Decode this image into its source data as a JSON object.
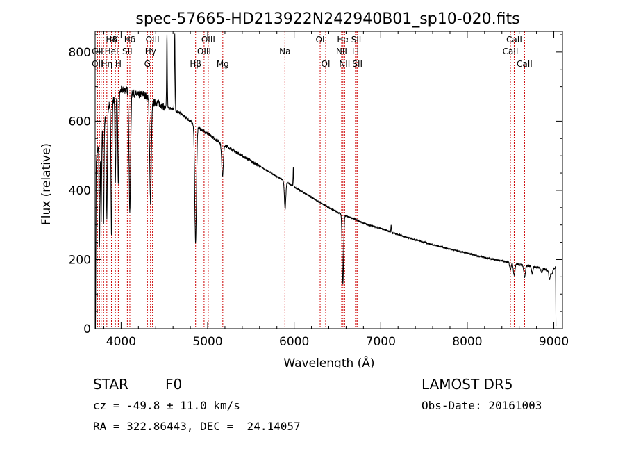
{
  "chart_data": {
    "type": "line",
    "title": "spec-57665-HD213922N242940B01_sp10-020.fits",
    "xlabel": "Wavelength (Å)",
    "ylabel": "Flux (relative)",
    "xlim": [
      3700,
      9100
    ],
    "ylim": [
      0,
      860
    ],
    "xticks": [
      4000,
      5000,
      6000,
      7000,
      8000,
      9000
    ],
    "xtick_labels": [
      "4000",
      "5000",
      "6000",
      "7000",
      "8000",
      "9000"
    ],
    "yticks": [
      0,
      200,
      400,
      600,
      800
    ],
    "ytick_labels": [
      "0",
      "200",
      "400",
      "600",
      "800"
    ],
    "grid": false,
    "series": [
      {
        "color": "#000000",
        "continuum": [
          [
            3705,
            10
          ],
          [
            3712,
            480
          ],
          [
            3730,
            520
          ],
          [
            3760,
            560
          ],
          [
            3800,
            600
          ],
          [
            3850,
            640
          ],
          [
            3900,
            660
          ],
          [
            3950,
            670
          ],
          [
            4000,
            690
          ],
          [
            4050,
            690
          ],
          [
            4100,
            690
          ],
          [
            4150,
            680
          ],
          [
            4200,
            675
          ],
          [
            4250,
            680
          ],
          [
            4300,
            670
          ],
          [
            4350,
            650
          ],
          [
            4400,
            655
          ],
          [
            4450,
            650
          ],
          [
            4500,
            640
          ],
          [
            4600,
            635
          ],
          [
            4700,
            620
          ],
          [
            4800,
            600
          ],
          [
            4900,
            580
          ],
          [
            5000,
            565
          ],
          [
            5100,
            545
          ],
          [
            5200,
            530
          ],
          [
            5300,
            515
          ],
          [
            5400,
            500
          ],
          [
            5500,
            485
          ],
          [
            5600,
            470
          ],
          [
            5700,
            455
          ],
          [
            5800,
            440
          ],
          [
            5900,
            425
          ],
          [
            6000,
            410
          ],
          [
            6100,
            395
          ],
          [
            6200,
            380
          ],
          [
            6300,
            365
          ],
          [
            6400,
            350
          ],
          [
            6500,
            337
          ],
          [
            6600,
            325
          ],
          [
            6700,
            317
          ],
          [
            6800,
            305
          ],
          [
            6900,
            297
          ],
          [
            7000,
            290
          ],
          [
            7200,
            272
          ],
          [
            7400,
            257
          ],
          [
            7600,
            243
          ],
          [
            7800,
            230
          ],
          [
            8000,
            218
          ],
          [
            8200,
            206
          ],
          [
            8400,
            196
          ],
          [
            8500,
            190
          ],
          [
            8600,
            186
          ],
          [
            8700,
            182
          ],
          [
            8800,
            178
          ],
          [
            8900,
            173
          ],
          [
            8980,
            158
          ],
          [
            9000,
            175
          ],
          [
            9020,
            178
          ],
          [
            9025,
            0
          ]
        ],
        "absorption": [
          [
            3705,
            0,
            6
          ],
          [
            3750,
            320,
            5
          ],
          [
            3770,
            260,
            5
          ],
          [
            3798,
            300,
            5
          ],
          [
            3835,
            310,
            6
          ],
          [
            3889,
            380,
            6
          ],
          [
            3934,
            240,
            5
          ],
          [
            3968,
            270,
            6
          ],
          [
            4101,
            350,
            9
          ],
          [
            4340,
            290,
            9
          ],
          [
            4861,
            340,
            10
          ],
          [
            5172,
            90,
            10
          ],
          [
            5895,
            80,
            8
          ],
          [
            6563,
            200,
            8
          ],
          [
            8498,
            20,
            8
          ],
          [
            8542,
            35,
            9
          ],
          [
            8662,
            35,
            9
          ],
          [
            8750,
            20,
            8
          ],
          [
            8860,
            15,
            8
          ],
          [
            8950,
            20,
            8
          ]
        ],
        "emission": [
          [
            4530,
            210,
            4
          ],
          [
            4620,
            220,
            4
          ],
          [
            5990,
            55,
            3
          ],
          [
            7120,
            20,
            3
          ]
        ]
      }
    ],
    "spectral_lines": [
      {
        "label": "Hδ",
        "wavelength": 3889,
        "row": 0
      },
      {
        "label": "K",
        "wavelength": 3934,
        "row": 0
      },
      {
        "label": "Hδ",
        "wavelength": 4101,
        "row": 0
      },
      {
        "label": "OIII",
        "wavelength": 4363,
        "row": 0
      },
      {
        "label": "OIII",
        "wavelength": 5007,
        "row": 0
      },
      {
        "label": "OI",
        "wavelength": 6300,
        "row": 0
      },
      {
        "label": "Hα",
        "wavelength": 6563,
        "row": 0
      },
      {
        "label": "SII",
        "wavelength": 6717,
        "row": 0
      },
      {
        "label": "CaII",
        "wavelength": 8542,
        "row": 0
      },
      {
        "label": "OII",
        "wavelength": 3727,
        "row": 1
      },
      {
        "label": "HeI",
        "wavelength": 3889,
        "row": 1
      },
      {
        "label": "SII",
        "wavelength": 4072,
        "row": 1
      },
      {
        "label": "Hγ",
        "wavelength": 4340,
        "row": 1
      },
      {
        "label": "OIII",
        "wavelength": 4959,
        "row": 1
      },
      {
        "label": "Na",
        "wavelength": 5893,
        "row": 1
      },
      {
        "label": "NII",
        "wavelength": 6548,
        "row": 1
      },
      {
        "label": "Li",
        "wavelength": 6708,
        "row": 1
      },
      {
        "label": "CaII",
        "wavelength": 8498,
        "row": 1
      },
      {
        "label": "OII",
        "wavelength": 3727,
        "row": 2
      },
      {
        "label": "Hη",
        "wavelength": 3835,
        "row": 2
      },
      {
        "label": "H",
        "wavelength": 3968,
        "row": 2
      },
      {
        "label": "G",
        "wavelength": 4304,
        "row": 2
      },
      {
        "label": "Hβ",
        "wavelength": 4861,
        "row": 2
      },
      {
        "label": "Mg",
        "wavelength": 5175,
        "row": 2
      },
      {
        "label": "OI",
        "wavelength": 6364,
        "row": 2
      },
      {
        "label": "NII",
        "wavelength": 6583,
        "row": 2
      },
      {
        "label": "SII",
        "wavelength": 6731,
        "row": 2
      },
      {
        "label": "CaII",
        "wavelength": 8662,
        "row": 2
      }
    ],
    "marker_lines_wavelengths": [
      3727,
      3750,
      3770,
      3798,
      3835,
      3889,
      3934,
      3968,
      4072,
      4101,
      4304,
      4340,
      4363,
      4861,
      4959,
      5007,
      5175,
      5893,
      6300,
      6364,
      6548,
      6563,
      6583,
      6708,
      6717,
      6731,
      8498,
      8542,
      8662
    ],
    "marker_line_color": "#cc0000"
  },
  "info": {
    "object_class": "STAR",
    "subclass": "F0",
    "survey": "LAMOST DR5",
    "cz_text": "cz = -49.8 ± 11.0 km/s",
    "obs_date_text": "Obs-Date: 20161003",
    "radec_text": "RA = 322.86443, DEC =  24.14057"
  }
}
